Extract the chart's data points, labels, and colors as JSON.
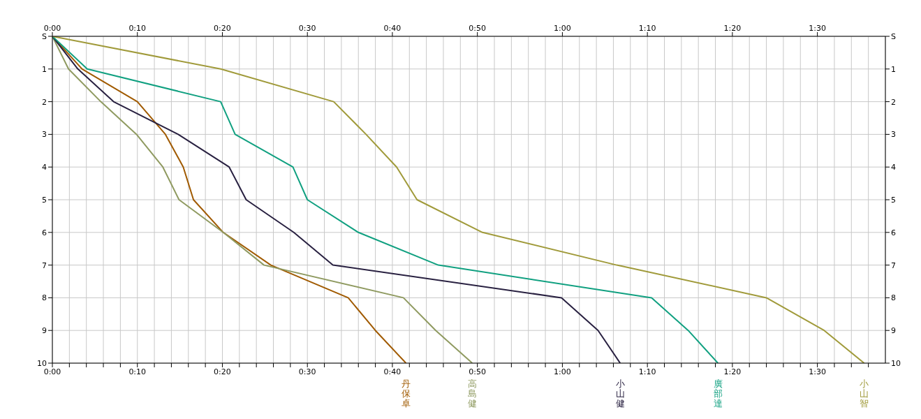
{
  "chart_data": {
    "type": "line",
    "grid": true,
    "legend": false,
    "marker": "none",
    "line_style": "solid",
    "xlim": [
      0,
      98
    ],
    "x2lim": [
      0,
      98
    ],
    "ylim": [
      10,
      0
    ],
    "y2lim": [
      10,
      0
    ],
    "xticks": [
      {
        "value": 0,
        "label": "0:00"
      },
      {
        "value": 2,
        "label": null
      },
      {
        "value": 4,
        "label": null
      },
      {
        "value": 6,
        "label": null
      },
      {
        "value": 8,
        "label": null
      },
      {
        "value": 10,
        "label": "0:10"
      },
      {
        "value": 12,
        "label": null
      },
      {
        "value": 14,
        "label": null
      },
      {
        "value": 16,
        "label": null
      },
      {
        "value": 18,
        "label": null
      },
      {
        "value": 20,
        "label": "0:20"
      },
      {
        "value": 22,
        "label": null
      },
      {
        "value": 24,
        "label": null
      },
      {
        "value": 26,
        "label": null
      },
      {
        "value": 28,
        "label": null
      },
      {
        "value": 30,
        "label": "0:30"
      },
      {
        "value": 32,
        "label": null
      },
      {
        "value": 34,
        "label": null
      },
      {
        "value": 36,
        "label": null
      },
      {
        "value": 38,
        "label": null
      },
      {
        "value": 40,
        "label": "0:40"
      },
      {
        "value": 42,
        "label": null
      },
      {
        "value": 44,
        "label": null
      },
      {
        "value": 46,
        "label": null
      },
      {
        "value": 48,
        "label": null
      },
      {
        "value": 50,
        "label": "0:50"
      },
      {
        "value": 52,
        "label": null
      },
      {
        "value": 54,
        "label": null
      },
      {
        "value": 56,
        "label": null
      },
      {
        "value": 58,
        "label": null
      },
      {
        "value": 60,
        "label": "1:00"
      },
      {
        "value": 62,
        "label": null
      },
      {
        "value": 64,
        "label": null
      },
      {
        "value": 66,
        "label": null
      },
      {
        "value": 68,
        "label": null
      },
      {
        "value": 70,
        "label": "1:10"
      },
      {
        "value": 72,
        "label": null
      },
      {
        "value": 74,
        "label": null
      },
      {
        "value": 76,
        "label": null
      },
      {
        "value": 78,
        "label": null
      },
      {
        "value": 80,
        "label": "1:20"
      },
      {
        "value": 82,
        "label": null
      },
      {
        "value": 84,
        "label": null
      },
      {
        "value": 86,
        "label": null
      },
      {
        "value": 88,
        "label": null
      },
      {
        "value": 90,
        "label": "1:30"
      },
      {
        "value": 92,
        "label": null
      },
      {
        "value": 94,
        "label": null
      },
      {
        "value": 96,
        "label": null
      }
    ],
    "x2ticks": [
      {
        "value": 0,
        "label": "0:00"
      },
      {
        "value": 10,
        "label": "0:10"
      },
      {
        "value": 20,
        "label": "0:20"
      },
      {
        "value": 30,
        "label": "0:30"
      },
      {
        "value": 40,
        "label": "0:40"
      },
      {
        "value": 50,
        "label": "0:50"
      },
      {
        "value": 60,
        "label": "1:00"
      },
      {
        "value": 70,
        "label": "1:10"
      },
      {
        "value": 80,
        "label": "1:20"
      },
      {
        "value": 90,
        "label": "1:30"
      }
    ],
    "yticks": [
      {
        "value": 0,
        "label": "S"
      },
      1,
      2,
      3,
      4,
      5,
      6,
      7,
      8,
      9,
      10
    ],
    "y2ticks": [
      {
        "value": 0,
        "label": "S"
      },
      1,
      2,
      3,
      4,
      5,
      6,
      7,
      8,
      9,
      10
    ],
    "series": [
      {
        "name": "丹保卓",
        "color": "#a05a00",
        "x": [
          0,
          3.5,
          10.0,
          13.3,
          15.4,
          16.6,
          20.1,
          25.7,
          34.8,
          38.0,
          41.6
        ],
        "values": [
          0,
          1,
          2,
          3,
          4,
          5,
          6,
          7,
          8,
          9,
          10
        ]
      },
      {
        "name": "高島健",
        "color": "#8f9a60",
        "x": [
          0,
          1.9,
          5.7,
          9.9,
          13.0,
          14.9,
          20.1,
          24.9,
          41.3,
          45.1,
          49.4
        ],
        "values": [
          0,
          1,
          2,
          3,
          4,
          5,
          6,
          7,
          8,
          9,
          10
        ]
      },
      {
        "name": "小山健",
        "color": "#282040",
        "x": [
          0,
          3.0,
          7.2,
          14.8,
          20.8,
          22.8,
          28.4,
          33.0,
          59.9,
          64.2,
          66.8
        ],
        "values": [
          0,
          1,
          2,
          3,
          4,
          5,
          6,
          7,
          8,
          9,
          10
        ]
      },
      {
        "name": "廣部達",
        "color": "#10a080",
        "x": [
          0,
          4.1,
          19.8,
          21.5,
          28.3,
          30.0,
          36.0,
          45.4,
          70.5,
          74.8,
          78.3
        ],
        "values": [
          0,
          1,
          2,
          3,
          4,
          5,
          6,
          7,
          8,
          9,
          10
        ]
      },
      {
        "name": "小山智",
        "color": "#a09a3a",
        "x": [
          0,
          19.8,
          33.1,
          36.9,
          40.5,
          42.9,
          50.6,
          66.4,
          84.0,
          90.8,
          95.5
        ],
        "values": [
          0,
          1,
          2,
          3,
          4,
          5,
          6,
          7,
          8,
          9,
          10
        ]
      }
    ]
  }
}
